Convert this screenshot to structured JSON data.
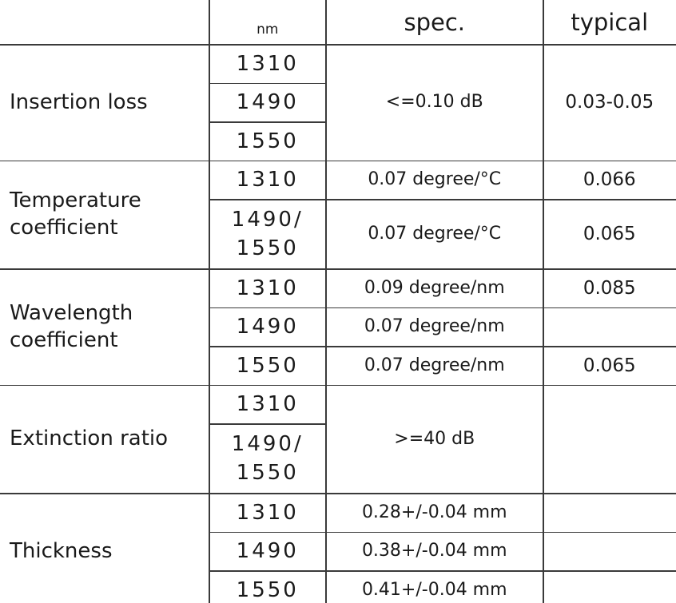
{
  "header": {
    "nm": "nm",
    "spec": "spec.",
    "typical": "typical"
  },
  "groups": [
    {
      "label": "Insertion loss",
      "nm": [
        "1310",
        "1490",
        "1550"
      ],
      "spec": "<=0.10 dB",
      "typical": "0.03-0.05"
    },
    {
      "label": "Temperature\ncoefficient",
      "nm": [
        "1310",
        "1490/\n1550"
      ],
      "spec": [
        "0.07 degree/°C",
        "0.07 degree/°C"
      ],
      "typical": [
        "0.066",
        "0.065"
      ]
    },
    {
      "label": "Wavelength\ncoefficient",
      "nm": [
        "1310",
        "1490",
        "1550"
      ],
      "spec": [
        "0.09 degree/nm",
        "0.07 degree/nm",
        "0.07 degree/nm"
      ],
      "typical": [
        "0.085",
        null,
        "0.065"
      ]
    },
    {
      "label": "Extinction ratio",
      "nm": [
        "1310",
        "1490/\n1550"
      ],
      "spec": ">=40 dB"
    },
    {
      "label": "Thickness",
      "nm": [
        "1310",
        "1490",
        "1550"
      ],
      "spec": [
        "0.28+/-0.04 mm",
        "0.38+/-0.04 mm",
        "0.41+/-0.04 mm"
      ],
      "typical": [
        null,
        null,
        null
      ]
    }
  ]
}
